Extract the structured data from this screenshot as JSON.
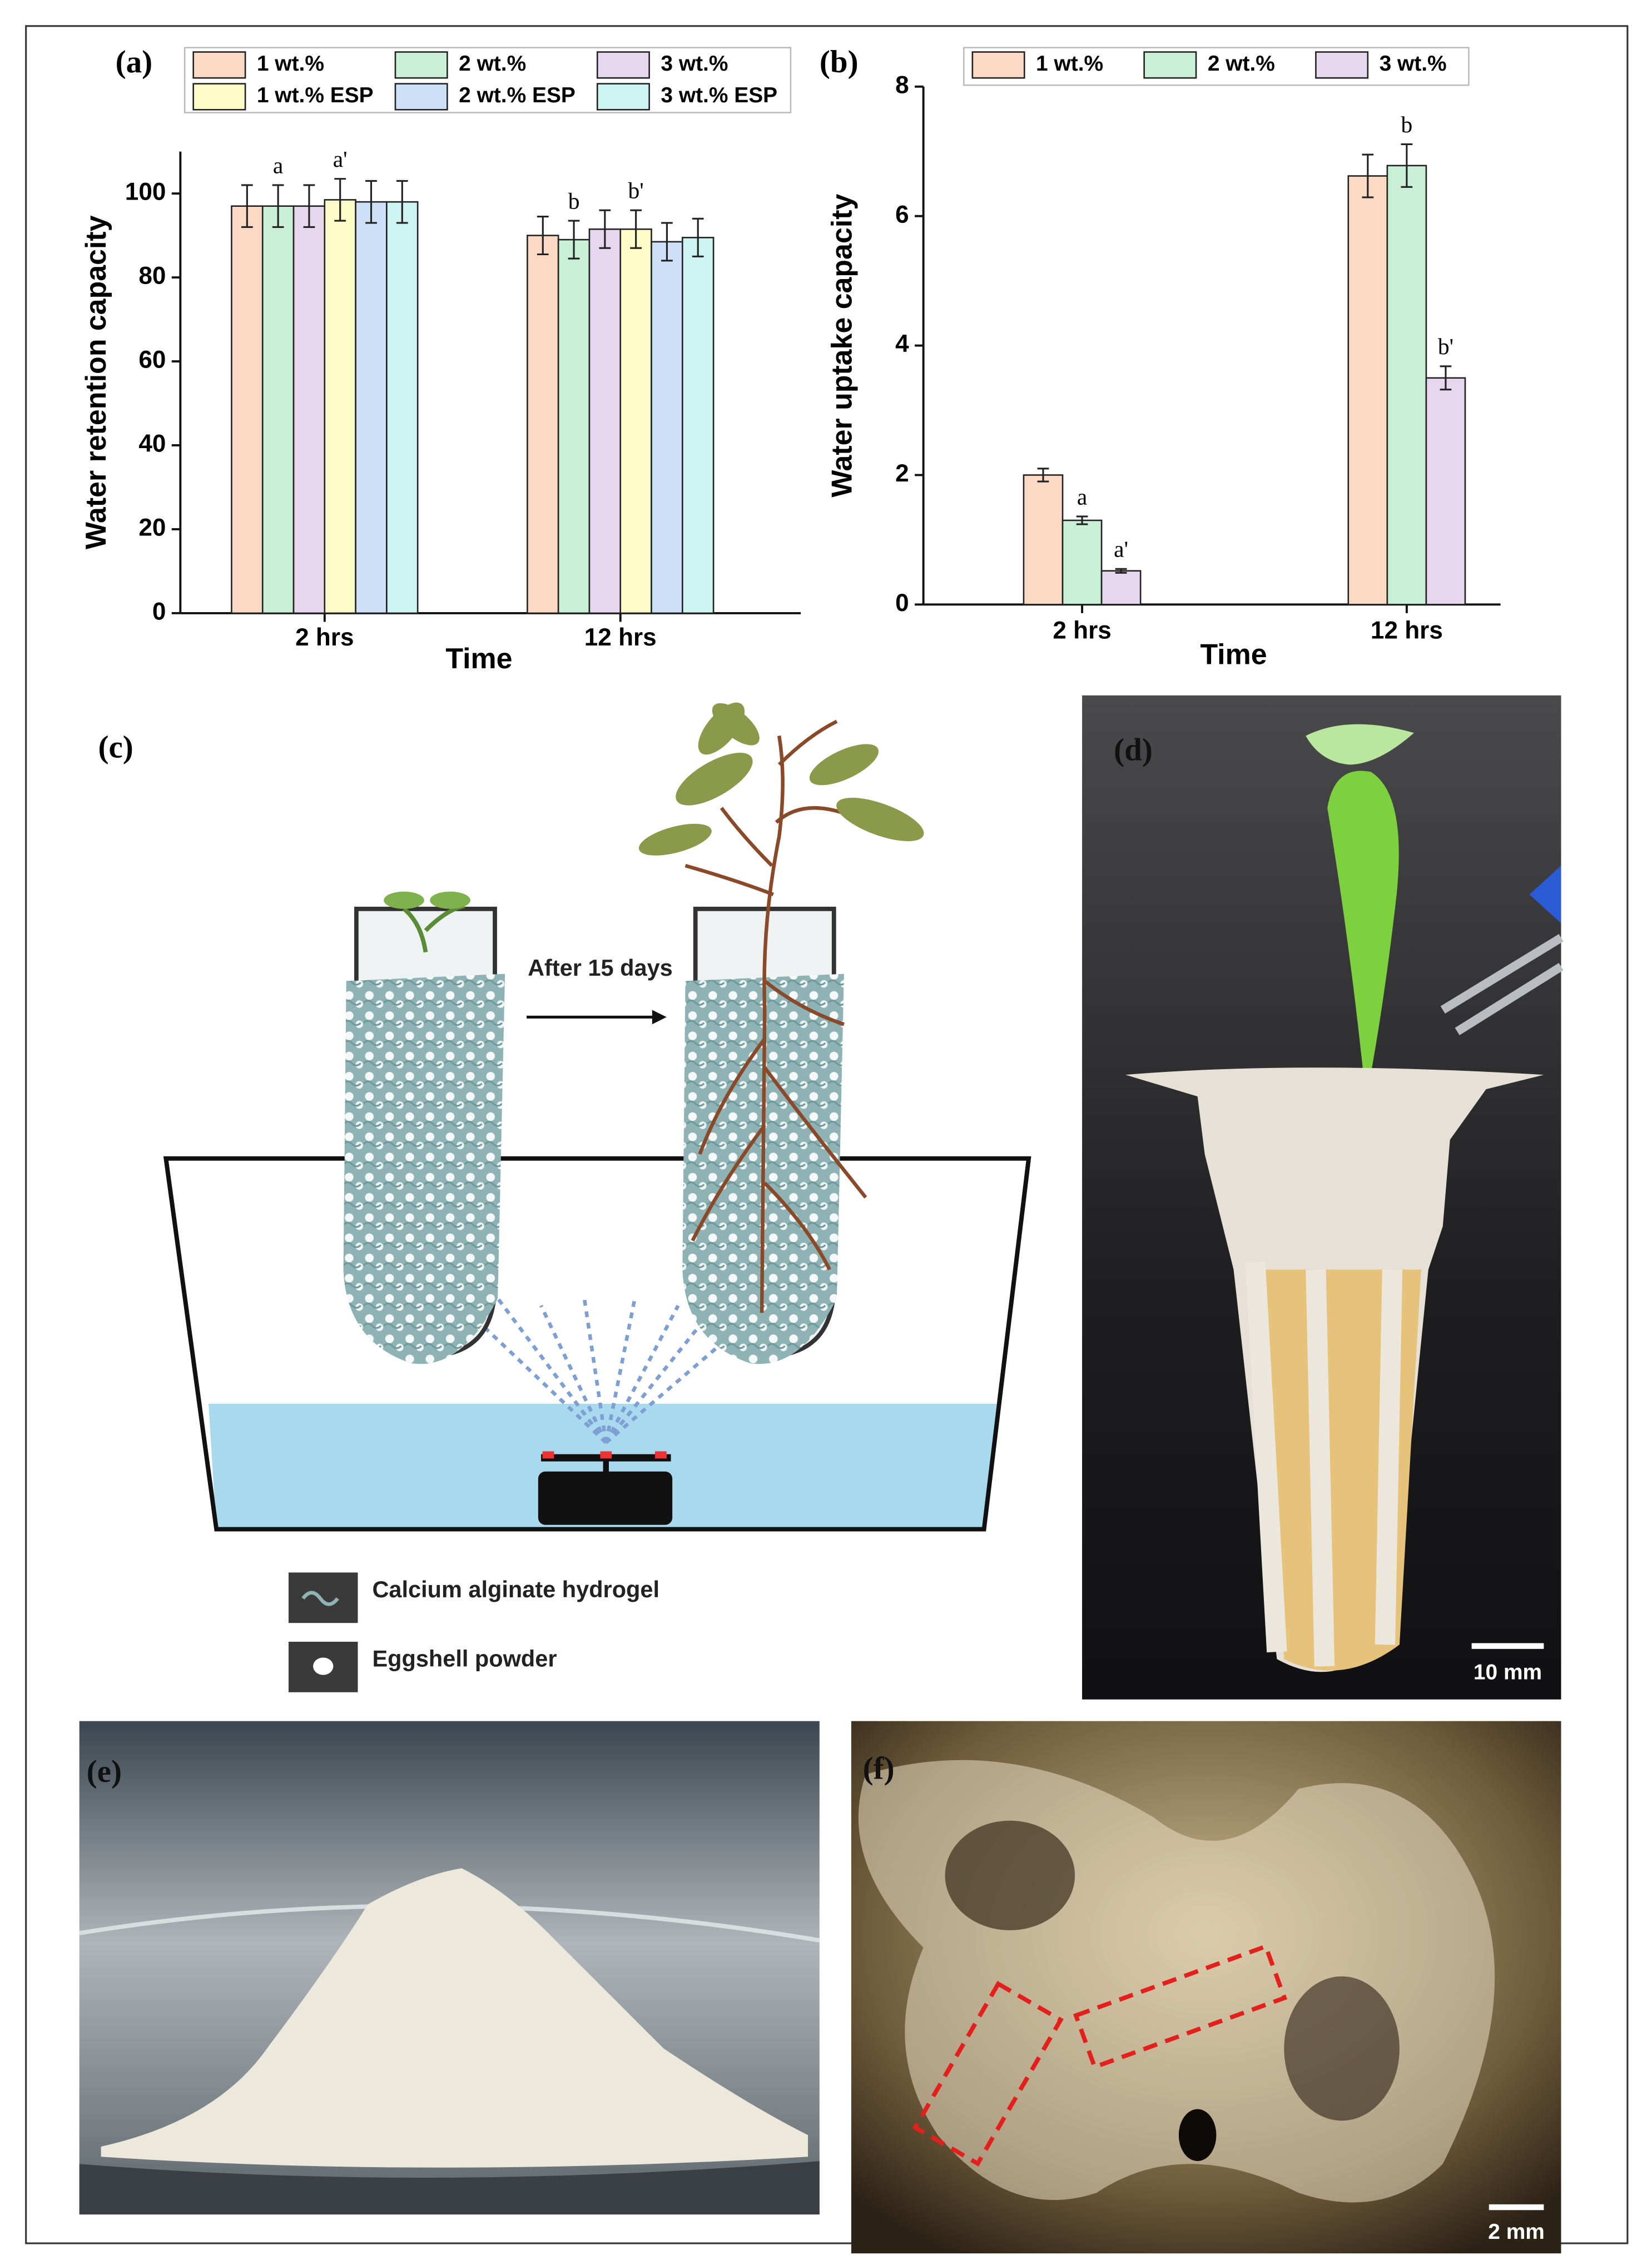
{
  "chart_data": [
    {
      "type": "bar",
      "y_label": "Water retention capacity",
      "x_label": "Time",
      "categories": [
        "2 hrs",
        "12 hrs"
      ],
      "ylim": [
        0,
        110
      ],
      "yticks": [
        0,
        20,
        40,
        60,
        80,
        100
      ],
      "series": [
        {
          "name": "1 wt.%",
          "color": "#fcd9c4",
          "values": [
            97,
            90
          ],
          "errors": [
            5,
            4.5
          ]
        },
        {
          "name": "2 wt.%",
          "color": "#c9efd6",
          "values": [
            97,
            89
          ],
          "errors": [
            5,
            4.5
          ],
          "annotations": [
            "a",
            "b"
          ]
        },
        {
          "name": "3 wt.%",
          "color": "#e6d6ee",
          "values": [
            97,
            91.5
          ],
          "errors": [
            5,
            4.5
          ]
        },
        {
          "name": "1 wt.% ESP",
          "color": "#fdfbc8",
          "values": [
            98.5,
            91.5
          ],
          "errors": [
            5,
            4.5
          ],
          "annotations": [
            "a'",
            "b'"
          ]
        },
        {
          "name": "2 wt.% ESP",
          "color": "#cde0f7",
          "values": [
            98,
            88.5
          ],
          "errors": [
            5,
            4.5
          ]
        },
        {
          "name": "3 wt.% ESP",
          "color": "#cdf4f1",
          "values": [
            98,
            89.5
          ],
          "errors": [
            5,
            4.5
          ]
        }
      ]
    },
    {
      "type": "bar",
      "y_label": "Water uptake capacity",
      "x_label": "Time",
      "categories": [
        "2 hrs",
        "12 hrs"
      ],
      "ylim": [
        0,
        8
      ],
      "yticks": [
        0,
        2,
        4,
        6,
        8
      ],
      "series": [
        {
          "name": "1 wt.%",
          "color": "#fcd9c4",
          "values": [
            2.0,
            6.62
          ],
          "errors": [
            0.1,
            0.33
          ]
        },
        {
          "name": "2 wt.%",
          "color": "#c9efd6",
          "values": [
            1.3,
            6.78
          ],
          "errors": [
            0.06,
            0.33
          ],
          "annotations": [
            "a",
            "b"
          ]
        },
        {
          "name": "3 wt.%",
          "color": "#e6d6ee",
          "values": [
            0.52,
            3.5
          ],
          "errors": [
            0.03,
            0.18
          ],
          "annotations": [
            "a'",
            "b'"
          ]
        }
      ]
    }
  ],
  "panels": {
    "a": "(a)",
    "b": "(b)",
    "c": "(c)",
    "d": "(d)",
    "e": "(e)",
    "f": "(f)"
  },
  "diagram": {
    "arrow_label": "After 15 days",
    "legend": [
      "Calcium alginate hydrogel",
      "Eggshell powder"
    ]
  },
  "scale_bars": {
    "d": "10 mm",
    "f": "2 mm"
  }
}
